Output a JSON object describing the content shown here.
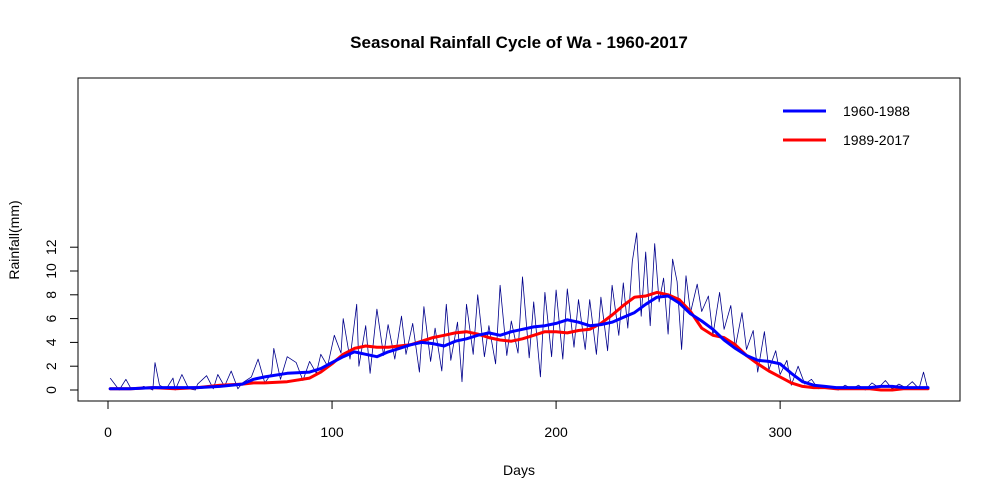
{
  "chart_data": {
    "type": "line",
    "title": "Seasonal Rainfall Cycle of Wa - 1960-2017",
    "xlabel": "Days",
    "ylabel": "Rainfall(mm)",
    "xlim": [
      0,
      366
    ],
    "ylim": [
      0,
      13
    ],
    "x_ticks": [
      0,
      100,
      200,
      300
    ],
    "y_ticks": [
      0,
      2,
      4,
      6,
      8,
      10,
      12
    ],
    "grid": false,
    "legend_position": "top-right",
    "legend": [
      {
        "label": "1960-1988",
        "color": "#0000ff"
      },
      {
        "label": "1989-2017",
        "color": "#ff0000"
      }
    ],
    "daily_color": "#00008b",
    "daily_rainfall": {
      "x": [
        1,
        5,
        8,
        10,
        13,
        16,
        20,
        21,
        23,
        26,
        29,
        30,
        33,
        36,
        39,
        40,
        44,
        47,
        49,
        52,
        55,
        58,
        60,
        64,
        67,
        70,
        73,
        74,
        77,
        80,
        84,
        87,
        90,
        93,
        95,
        98,
        101,
        104,
        105,
        108,
        111,
        112,
        115,
        117,
        120,
        123,
        125,
        128,
        131,
        133,
        136,
        139,
        141,
        144,
        146,
        149,
        151,
        153,
        156,
        158,
        160,
        163,
        165,
        168,
        170,
        173,
        175,
        178,
        180,
        183,
        185,
        188,
        190,
        193,
        195,
        198,
        200,
        203,
        205,
        208,
        210,
        213,
        215,
        218,
        220,
        223,
        225,
        228,
        230,
        232,
        234,
        236,
        238,
        240,
        242,
        244,
        246,
        248,
        250,
        252,
        254,
        256,
        258,
        260,
        263,
        265,
        268,
        270,
        273,
        275,
        278,
        280,
        283,
        285,
        288,
        290,
        293,
        295,
        298,
        300,
        303,
        305,
        308,
        311,
        314,
        317,
        320,
        323,
        326,
        329,
        332,
        335,
        338,
        341,
        344,
        347,
        350,
        353,
        356,
        359,
        362,
        364,
        366
      ],
      "y": [
        1.0,
        0.0,
        0.9,
        0.2,
        0.1,
        0.3,
        0.0,
        2.3,
        0.4,
        0.1,
        1.0,
        0.0,
        1.3,
        0.1,
        0.0,
        0.5,
        1.2,
        0.1,
        1.3,
        0.3,
        1.6,
        0.1,
        0.6,
        1.1,
        2.6,
        0.6,
        1.4,
        3.5,
        0.9,
        2.8,
        2.3,
        0.8,
        2.4,
        1.4,
        3.0,
        2.0,
        4.6,
        3.1,
        6.0,
        2.6,
        7.2,
        2.0,
        5.4,
        1.4,
        6.8,
        2.9,
        5.5,
        2.6,
        6.2,
        3.0,
        5.6,
        1.5,
        7.0,
        2.4,
        5.2,
        1.6,
        7.2,
        2.5,
        5.7,
        0.7,
        7.2,
        3.0,
        8.0,
        2.8,
        5.4,
        2.2,
        8.8,
        2.9,
        5.8,
        3.1,
        9.5,
        2.7,
        7.4,
        1.1,
        8.2,
        2.8,
        8.4,
        2.6,
        8.5,
        3.6,
        7.6,
        3.4,
        7.6,
        3.0,
        7.8,
        3.3,
        8.8,
        4.6,
        9.0,
        5.2,
        10.8,
        13.2,
        6.2,
        11.6,
        5.4,
        12.3,
        7.4,
        9.4,
        4.7,
        11.0,
        9.1,
        3.4,
        9.6,
        6.5,
        8.9,
        6.6,
        7.9,
        4.6,
        8.2,
        5.1,
        7.1,
        3.6,
        6.5,
        3.4,
        5.0,
        1.5,
        4.9,
        1.7,
        3.3,
        1.3,
        2.5,
        0.4,
        2.0,
        0.5,
        0.9,
        0.1,
        0.3,
        0.1,
        0.0,
        0.4,
        0.1,
        0.4,
        0.0,
        0.6,
        0.2,
        0.8,
        0.1,
        0.5,
        0.2,
        0.7,
        0.1,
        1.5,
        0.0
      ]
    },
    "series": [
      {
        "name": "1960-1988",
        "color": "#0000ff",
        "x": [
          1,
          10,
          20,
          30,
          40,
          50,
          60,
          65,
          70,
          80,
          90,
          95,
          100,
          105,
          110,
          115,
          120,
          125,
          130,
          135,
          140,
          145,
          150,
          155,
          160,
          165,
          170,
          175,
          180,
          185,
          190,
          195,
          200,
          205,
          210,
          215,
          220,
          225,
          230,
          235,
          240,
          245,
          250,
          255,
          260,
          265,
          270,
          275,
          280,
          285,
          290,
          295,
          300,
          305,
          310,
          315,
          320,
          325,
          330,
          335,
          340,
          345,
          350,
          355,
          360,
          366
        ],
        "y": [
          0.1,
          0.1,
          0.2,
          0.2,
          0.2,
          0.3,
          0.5,
          0.9,
          1.1,
          1.4,
          1.5,
          1.8,
          2.3,
          2.8,
          3.2,
          3.0,
          2.8,
          3.2,
          3.5,
          3.8,
          4.0,
          3.9,
          3.7,
          4.1,
          4.3,
          4.6,
          4.8,
          4.6,
          4.9,
          5.1,
          5.3,
          5.4,
          5.6,
          5.9,
          5.7,
          5.4,
          5.5,
          5.7,
          6.1,
          6.5,
          7.2,
          7.8,
          7.9,
          7.3,
          6.4,
          5.8,
          5.1,
          4.2,
          3.5,
          2.9,
          2.5,
          2.4,
          2.2,
          1.4,
          0.7,
          0.4,
          0.3,
          0.2,
          0.2,
          0.2,
          0.2,
          0.3,
          0.3,
          0.2,
          0.2,
          0.2
        ]
      },
      {
        "name": "1989-2017",
        "color": "#ff0000",
        "x": [
          1,
          10,
          20,
          30,
          40,
          50,
          60,
          65,
          70,
          80,
          90,
          95,
          100,
          105,
          110,
          115,
          120,
          125,
          130,
          135,
          140,
          145,
          150,
          155,
          160,
          165,
          170,
          175,
          180,
          185,
          190,
          195,
          200,
          205,
          210,
          215,
          220,
          225,
          230,
          235,
          240,
          245,
          250,
          255,
          260,
          265,
          270,
          275,
          280,
          285,
          290,
          295,
          300,
          305,
          310,
          315,
          320,
          325,
          330,
          335,
          340,
          345,
          350,
          355,
          360,
          366
        ],
        "y": [
          0.1,
          0.1,
          0.2,
          0.1,
          0.2,
          0.4,
          0.5,
          0.6,
          0.6,
          0.7,
          1.0,
          1.5,
          2.2,
          3.0,
          3.5,
          3.7,
          3.6,
          3.6,
          3.7,
          3.8,
          4.1,
          4.4,
          4.6,
          4.8,
          4.9,
          4.7,
          4.4,
          4.2,
          4.1,
          4.3,
          4.6,
          4.9,
          4.9,
          4.8,
          5.0,
          5.1,
          5.6,
          6.3,
          7.1,
          7.8,
          7.9,
          8.2,
          8.0,
          7.6,
          6.6,
          5.2,
          4.6,
          4.4,
          3.8,
          2.9,
          2.2,
          1.6,
          1.1,
          0.6,
          0.3,
          0.2,
          0.2,
          0.1,
          0.1,
          0.1,
          0.1,
          0.0,
          0.0,
          0.1,
          0.1,
          0.1
        ]
      }
    ]
  }
}
